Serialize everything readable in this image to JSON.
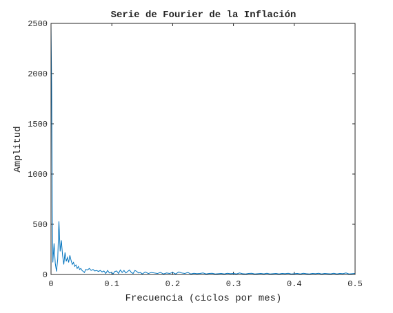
{
  "chart_data": {
    "type": "line",
    "title": "Serie de Fourier de la Inflación",
    "xlabel": "Frecuencia (ciclos por mes)",
    "ylabel": "Amplitud",
    "xlim": [
      0,
      0.5
    ],
    "ylim": [
      0,
      2500
    ],
    "xticks": [
      0,
      0.1,
      0.2,
      0.3,
      0.4,
      0.5
    ],
    "xtick_labels": [
      "0",
      "0.1",
      "0.2",
      "0.3",
      "0.4",
      "0.5"
    ],
    "yticks": [
      0,
      500,
      1000,
      1500,
      2000,
      2500
    ],
    "ytick_labels": [
      "0",
      "500",
      "1000",
      "1500",
      "2000",
      "2500"
    ],
    "grid": false,
    "box": true,
    "line_color": "#0072bd",
    "series": [
      {
        "x": [
          0.0,
          0.001,
          0.002,
          0.003,
          0.005,
          0.007,
          0.009,
          0.011,
          0.013,
          0.015,
          0.017,
          0.019,
          0.021,
          0.023,
          0.025,
          0.027,
          0.029,
          0.031,
          0.033,
          0.035,
          0.037,
          0.039,
          0.041,
          0.043,
          0.045,
          0.047,
          0.049,
          0.051,
          0.053,
          0.055,
          0.057,
          0.06,
          0.063,
          0.066,
          0.069,
          0.072,
          0.075,
          0.078,
          0.081,
          0.084,
          0.087,
          0.09,
          0.093,
          0.096,
          0.099,
          0.102,
          0.105,
          0.108,
          0.111,
          0.114,
          0.117,
          0.12,
          0.123,
          0.126,
          0.129,
          0.132,
          0.135,
          0.138,
          0.141,
          0.144,
          0.147,
          0.15,
          0.155,
          0.16,
          0.165,
          0.17,
          0.175,
          0.18,
          0.185,
          0.19,
          0.195,
          0.2,
          0.205,
          0.21,
          0.215,
          0.22,
          0.225,
          0.23,
          0.235,
          0.24,
          0.245,
          0.25,
          0.255,
          0.26,
          0.265,
          0.27,
          0.275,
          0.28,
          0.285,
          0.29,
          0.295,
          0.3,
          0.305,
          0.31,
          0.315,
          0.32,
          0.325,
          0.33,
          0.335,
          0.34,
          0.345,
          0.35,
          0.355,
          0.36,
          0.365,
          0.37,
          0.375,
          0.38,
          0.385,
          0.39,
          0.395,
          0.4,
          0.405,
          0.41,
          0.415,
          0.42,
          0.425,
          0.43,
          0.435,
          0.44,
          0.445,
          0.45,
          0.455,
          0.46,
          0.465,
          0.47,
          0.475,
          0.48,
          0.485,
          0.49,
          0.495,
          0.5
        ],
        "y": [
          2480,
          1900,
          700,
          120,
          310,
          110,
          30,
          150,
          530,
          230,
          340,
          190,
          100,
          220,
          130,
          170,
          120,
          190,
          140,
          100,
          120,
          80,
          95,
          60,
          80,
          50,
          60,
          40,
          30,
          20,
          50,
          45,
          60,
          40,
          50,
          35,
          40,
          30,
          40,
          25,
          35,
          10,
          40,
          15,
          20,
          5,
          30,
          35,
          10,
          45,
          20,
          40,
          15,
          30,
          45,
          20,
          10,
          40,
          30,
          15,
          20,
          5,
          25,
          10,
          20,
          15,
          10,
          20,
          5,
          15,
          10,
          20,
          5,
          25,
          15,
          10,
          20,
          5,
          12,
          8,
          10,
          15,
          5,
          10,
          12,
          5,
          8,
          10,
          5,
          12,
          8,
          10,
          5,
          15,
          8,
          5,
          10,
          12,
          5,
          8,
          10,
          6,
          12,
          5,
          8,
          10,
          5,
          10,
          8,
          12,
          5,
          8,
          10,
          5,
          12,
          8,
          5,
          10,
          8,
          12,
          5,
          10,
          8,
          6,
          12,
          5,
          10,
          8,
          15,
          5,
          8,
          10
        ]
      }
    ]
  }
}
